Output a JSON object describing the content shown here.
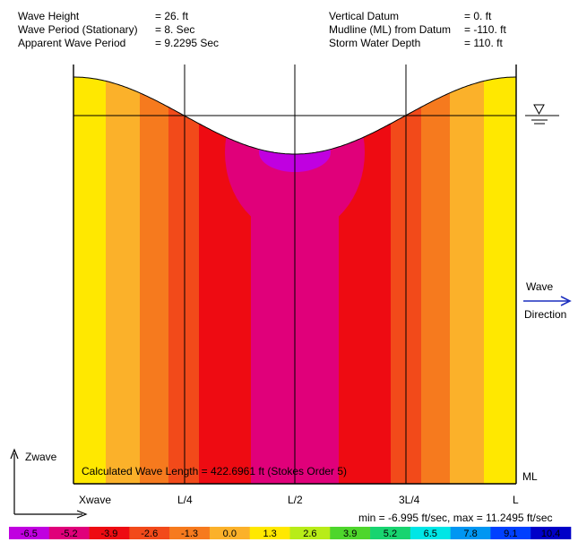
{
  "header": {
    "left": [
      {
        "label": "Wave Height",
        "value": "= 26. ft"
      },
      {
        "label": "Wave Period (Stationary)",
        "value": "= 8. Sec"
      },
      {
        "label": "Apparent Wave Period",
        "value": "= 9.2295 Sec"
      }
    ],
    "right": [
      {
        "label": "Vertical Datum",
        "value": "= 0. ft"
      },
      {
        "label": "Mudline (ML) from Datum",
        "value": "= -110. ft"
      },
      {
        "label": "Storm Water Depth",
        "value": "= 110. ft"
      }
    ]
  },
  "plot": {
    "calc_text": "Calculated Wave Length = 422.6961 ft  (Stokes Order 5)",
    "ml_label": "ML",
    "wave_label": "Wave",
    "direction_label": "Direction",
    "zwave_label": "Zwave",
    "xwave_label": "Xwave",
    "minmax_text": "min = -6.995 ft/sec,  max = 11.2495 ft/sec",
    "water_level_icon": "still-water-level-icon"
  },
  "chart_data": {
    "type": "heatmap",
    "x_ticks": [
      "L/4",
      "L/2",
      "3L/4",
      "L"
    ],
    "min_value": -6.995,
    "max_value": 11.2495,
    "units": "ft/sec",
    "colorbar": {
      "labels": [
        "-6.5",
        "-5.2",
        "-3.9",
        "-2.6",
        "-1.3",
        "0.0",
        "1.3",
        "2.6",
        "3.9",
        "5.2",
        "6.5",
        "7.8",
        "9.1",
        "10.4"
      ],
      "colors": [
        "#c000e0",
        "#e0007a",
        "#ee0b12",
        "#f24a1a",
        "#f67a1e",
        "#fbb12a",
        "#ffe800",
        "#b8ec18",
        "#4ed62c",
        "#18d470",
        "#00e6e6",
        "#0096f2",
        "#0040ff",
        "#0000c8"
      ]
    }
  }
}
